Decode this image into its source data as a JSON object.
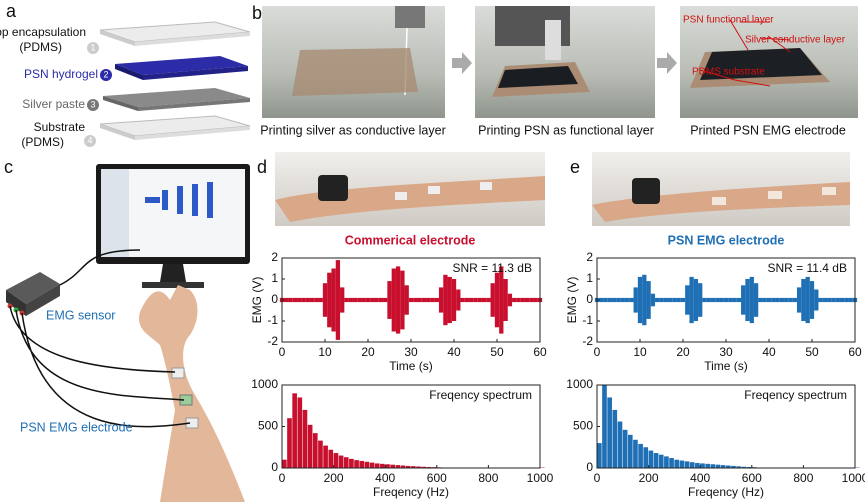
{
  "panel_labels": [
    "a",
    "b",
    "c",
    "d",
    "e"
  ],
  "layers": [
    {
      "lines": [
        "Top encapsulation",
        "(PDMS)"
      ],
      "number": 1
    },
    {
      "lines": [
        "PSN hydrogel"
      ],
      "number": 2
    },
    {
      "lines": [
        "Silver paste"
      ],
      "number": 3
    },
    {
      "lines": [
        "Substrate",
        "(PDMS)"
      ],
      "number": 4
    }
  ],
  "photo_captions": [
    "Printing silver as conductive layer",
    "Printing PSN as functional layer",
    "Printed PSN EMG electrode"
  ],
  "photo_annotations": [
    "PSN functional layer",
    "Silver conductive layer",
    "PDMS substrate"
  ],
  "setup_labels": [
    "EMG sensor",
    "PSN EMG electrode"
  ],
  "chart_data": [
    {
      "type": "signal",
      "title": "Commerical electrode",
      "color": "#c8102e",
      "annotation": "SNR = 11.3 dB",
      "x": [
        0,
        1,
        2,
        3,
        4,
        5,
        6,
        7,
        8,
        9,
        10,
        11,
        12,
        13,
        14,
        15,
        16,
        17,
        18,
        19,
        20,
        21,
        22,
        23,
        24,
        25,
        26,
        27,
        28,
        29,
        30,
        31,
        32,
        33,
        34,
        35,
        36,
        37,
        38,
        39,
        40,
        41,
        42,
        43,
        44,
        45,
        46,
        47,
        48,
        49,
        50,
        51,
        52,
        53,
        54,
        55,
        56,
        57,
        58,
        59,
        60
      ],
      "values": [
        0.1,
        0.1,
        0.1,
        0.1,
        0.1,
        0.1,
        0.1,
        0.1,
        0.1,
        0.1,
        0.8,
        1.3,
        1.5,
        1.9,
        0.6,
        0.1,
        0.1,
        0.1,
        0.1,
        0.1,
        0.1,
        0.1,
        0.1,
        0.1,
        0.1,
        0.9,
        1.5,
        1.6,
        1.4,
        0.7,
        0.1,
        0.1,
        0.1,
        0.1,
        0.1,
        0.1,
        0.1,
        0.6,
        1.2,
        1.1,
        1.0,
        0.5,
        0.1,
        0.1,
        0.1,
        0.1,
        0.1,
        0.1,
        0.1,
        0.8,
        1.3,
        1.6,
        1.0,
        0.3,
        0.1,
        0.1,
        0.1,
        0.1,
        0.1,
        0.1,
        0.1
      ],
      "xlim": [
        0,
        60
      ],
      "ylim": [
        -2,
        2
      ],
      "xticks": [
        0,
        10,
        20,
        30,
        40,
        50,
        60
      ],
      "yticks": [
        -2,
        -1,
        0,
        1,
        2
      ],
      "xlabel": "Time (s)",
      "ylabel": "EMG (V)"
    },
    {
      "type": "bar",
      "color": "#c8102e",
      "annotation": "Freqency spectrum",
      "x": [
        0,
        20,
        40,
        60,
        80,
        100,
        120,
        140,
        160,
        180,
        200,
        220,
        240,
        260,
        280,
        300,
        320,
        340,
        360,
        380,
        400,
        420,
        440,
        460,
        480,
        500,
        520,
        540,
        560,
        580,
        600,
        620,
        640,
        660,
        680,
        700,
        720,
        740,
        760,
        780,
        800,
        820,
        840,
        860,
        880,
        900,
        920,
        940,
        960,
        980,
        1000
      ],
      "values": [
        100,
        600,
        900,
        850,
        700,
        520,
        420,
        330,
        270,
        220,
        180,
        150,
        130,
        110,
        95,
        85,
        75,
        65,
        55,
        50,
        45,
        40,
        35,
        30,
        25,
        22,
        18,
        15,
        12,
        10,
        8,
        5,
        5,
        5,
        5,
        5,
        5,
        5,
        5,
        5,
        5,
        5,
        5,
        5,
        5,
        5,
        5,
        5,
        5,
        5,
        5
      ],
      "xlim": [
        0,
        1000
      ],
      "ylim": [
        0,
        1000
      ],
      "xticks": [
        0,
        200,
        400,
        600,
        800,
        1000
      ],
      "yticks": [
        0,
        500,
        1000
      ],
      "xlabel": "Freqency (Hz)"
    },
    {
      "type": "signal",
      "title": "PSN EMG electrode",
      "color": "#1f6fb4",
      "annotation": "SNR = 11.4 dB",
      "x": [
        0,
        1,
        2,
        3,
        4,
        5,
        6,
        7,
        8,
        9,
        10,
        11,
        12,
        13,
        14,
        15,
        16,
        17,
        18,
        19,
        20,
        21,
        22,
        23,
        24,
        25,
        26,
        27,
        28,
        29,
        30,
        31,
        32,
        33,
        34,
        35,
        36,
        37,
        38,
        39,
        40,
        41,
        42,
        43,
        44,
        45,
        46,
        47,
        48,
        49,
        50,
        51,
        52,
        53,
        54,
        55,
        56,
        57,
        58,
        59,
        60
      ],
      "values": [
        0.1,
        0.1,
        0.1,
        0.1,
        0.1,
        0.1,
        0.1,
        0.1,
        0.1,
        0.6,
        1.1,
        1.2,
        0.9,
        0.3,
        0.1,
        0.1,
        0.1,
        0.1,
        0.1,
        0.1,
        0.1,
        0.7,
        1.1,
        1.0,
        0.8,
        0.1,
        0.1,
        0.1,
        0.1,
        0.1,
        0.1,
        0.1,
        0.1,
        0.1,
        0.7,
        1.0,
        1.1,
        0.8,
        0.1,
        0.1,
        0.1,
        0.1,
        0.1,
        0.1,
        0.1,
        0.1,
        0.1,
        0.6,
        1.0,
        1.1,
        0.9,
        0.5,
        0.1,
        0.1,
        0.1,
        0.1,
        0.1,
        0.1,
        0.1,
        0.1,
        0.1
      ],
      "xlim": [
        0,
        60
      ],
      "ylim": [
        -2,
        2
      ],
      "xticks": [
        0,
        10,
        20,
        30,
        40,
        50,
        60
      ],
      "yticks": [
        -2,
        -1,
        0,
        1,
        2
      ],
      "xlabel": "Time (s)",
      "ylabel": "EMG (V)"
    },
    {
      "type": "bar",
      "color": "#1f6fb4",
      "annotation": "Freqency spectrum",
      "x": [
        0,
        20,
        40,
        60,
        80,
        100,
        120,
        140,
        160,
        180,
        200,
        220,
        240,
        260,
        280,
        300,
        320,
        340,
        360,
        380,
        400,
        420,
        440,
        460,
        480,
        500,
        520,
        540,
        560,
        580,
        600,
        620,
        640,
        660,
        680,
        700,
        720,
        740,
        760,
        780,
        800,
        820,
        840,
        860,
        880,
        900,
        920,
        940,
        960,
        980,
        1000
      ],
      "values": [
        300,
        1000,
        850,
        700,
        560,
        460,
        400,
        340,
        290,
        250,
        210,
        180,
        160,
        140,
        120,
        100,
        90,
        80,
        70,
        60,
        55,
        50,
        45,
        40,
        35,
        30,
        25,
        20,
        15,
        12,
        10,
        5,
        5,
        5,
        5,
        5,
        5,
        5,
        5,
        5,
        5,
        5,
        5,
        5,
        5,
        5,
        5,
        5,
        5,
        5,
        5
      ],
      "xlim": [
        0,
        1000
      ],
      "ylim": [
        0,
        1000
      ],
      "xticks": [
        0,
        200,
        400,
        600,
        800,
        1000
      ],
      "yticks": [
        0,
        500,
        1000
      ],
      "xlabel": "Freqency (Hz)"
    }
  ]
}
